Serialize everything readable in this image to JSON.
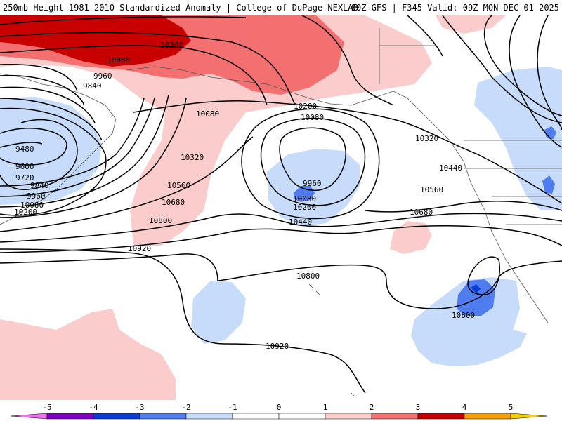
{
  "header": {
    "left_title": "250mb Height 1981-2010 Standardized Anomaly | College of DuPage NEXLAB",
    "right_title": "00Z GFS | F345 Valid: 09Z MON DEC 01 2025"
  },
  "map": {
    "contour_labels": [
      "10200",
      "10080",
      "9960",
      "9840",
      "10080",
      "10200",
      "10080",
      "10320",
      "10560",
      "10680",
      "10800",
      "10920",
      "9480",
      "9600",
      "9720",
      "9840",
      "9960",
      "10080",
      "10200",
      "9960",
      "10080",
      "10200",
      "10440",
      "10320",
      "10440",
      "10560",
      "10680",
      "10800",
      "10800",
      "10920"
    ],
    "anomaly_colors": {
      "neg3": "#0a3cd8",
      "neg2": "#4f7df0",
      "neg1": "#c7dcfa",
      "pos1": "#fbcccc",
      "pos2": "#f47070",
      "pos3": "#c80000"
    }
  },
  "colorbar": {
    "ticks": [
      "-5",
      "-4",
      "-3",
      "-2",
      "-1",
      "0",
      "1",
      "2",
      "3",
      "4",
      "5"
    ],
    "colors": [
      "#f070f0",
      "#8000c8",
      "#0a3cd8",
      "#4f7df0",
      "#c7dcfa",
      "#ffffff",
      "#ffffff",
      "#fbcccc",
      "#f47070",
      "#c80000",
      "#f5a000",
      "#f5d000"
    ]
  }
}
